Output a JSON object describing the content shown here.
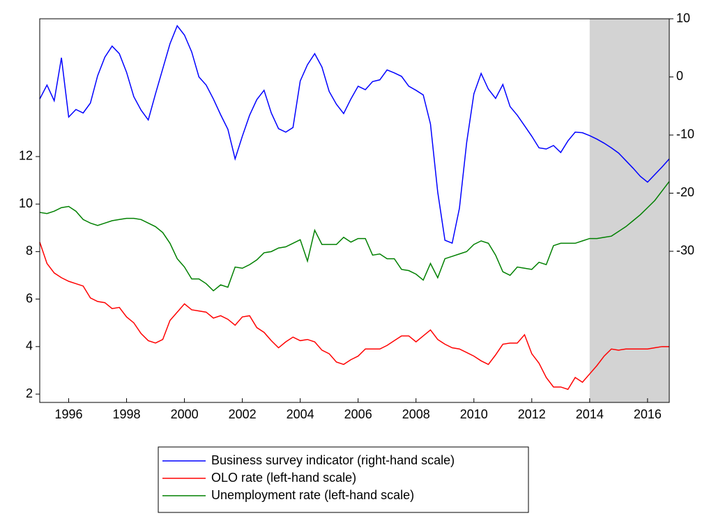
{
  "chart_data": {
    "type": "line",
    "x": [
      1995,
      1995.25,
      1995.5,
      1995.75,
      1996,
      1996.25,
      1996.5,
      1996.75,
      1997,
      1997.25,
      1997.5,
      1997.75,
      1998,
      1998.25,
      1998.5,
      1998.75,
      1999,
      1999.25,
      1999.5,
      1999.75,
      2000,
      2000.25,
      2000.5,
      2000.75,
      2001,
      2001.25,
      2001.5,
      2001.75,
      2002,
      2002.25,
      2002.5,
      2002.75,
      2003,
      2003.25,
      2003.5,
      2003.75,
      2004,
      2004.25,
      2004.5,
      2004.75,
      2005,
      2005.25,
      2005.5,
      2005.75,
      2006,
      2006.25,
      2006.5,
      2006.75,
      2007,
      2007.25,
      2007.5,
      2007.75,
      2008,
      2008.25,
      2008.5,
      2008.75,
      2009,
      2009.25,
      2009.5,
      2009.75,
      2010,
      2010.25,
      2010.5,
      2010.75,
      2011,
      2011.25,
      2011.5,
      2011.75,
      2012,
      2012.25,
      2012.5,
      2012.75,
      2013,
      2013.25,
      2013.5,
      2013.75,
      2014,
      2014.25,
      2014.5,
      2014.75,
      2015,
      2015.25,
      2015.5,
      2015.75,
      2016,
      2016.25,
      2016.5,
      2016.75
    ],
    "series": [
      {
        "name": "Business survey indicator (right-hand scale)",
        "color": "#0000ff",
        "axis": "y2",
        "values": [
          -3.8,
          -1.4,
          -4.1,
          3.3,
          -6.9,
          -5.6,
          -6.2,
          -4.5,
          0.2,
          3.4,
          5.3,
          4.0,
          0.8,
          -3.4,
          -5.7,
          -7.4,
          -2.9,
          1.4,
          5.7,
          8.8,
          7.2,
          4.3,
          0,
          -1.4,
          -3.8,
          -6.5,
          -9.0,
          -14.1,
          -10.2,
          -6.6,
          -3.9,
          -2.3,
          -6.2,
          -8.9,
          -9.5,
          -8.7,
          -0.7,
          2.1,
          4.0,
          1.7,
          -2.5,
          -4.7,
          -6.3,
          -3.8,
          -1.6,
          -2.2,
          -0.8,
          -0.5,
          1.2,
          0.7,
          0.1,
          -1.6,
          -2.3,
          -3.1,
          -8.1,
          -19.8,
          -28.1,
          -28.6,
          -22.6,
          -11.3,
          -2.9,
          0.6,
          -2.1,
          -3.7,
          -1.3,
          -5.1,
          -6.6,
          -8.4,
          -10.2,
          -12.2,
          -12.4,
          -11.8,
          -13.0,
          -11.0,
          -9.5,
          -9.6,
          -10.1,
          -10.7,
          -11.4,
          -12.2,
          -13.1,
          -14.4,
          -15.7,
          -17.1,
          -18.1,
          -16.8,
          -15.5,
          -14.1
        ]
      },
      {
        "name": "OLO rate (left-hand scale)",
        "color": "#ff0000",
        "values": [
          8.4,
          7.5,
          7.1,
          6.9,
          6.75,
          6.65,
          6.55,
          6.05,
          5.9,
          5.85,
          5.6,
          5.65,
          5.25,
          5.0,
          4.55,
          4.25,
          4.15,
          4.3,
          5.1,
          5.45,
          5.8,
          5.55,
          5.5,
          5.45,
          5.2,
          5.3,
          5.15,
          4.9,
          5.25,
          5.3,
          4.8,
          4.6,
          4.25,
          3.95,
          4.2,
          4.4,
          4.25,
          4.3,
          4.2,
          3.85,
          3.7,
          3.35,
          3.25,
          3.45,
          3.6,
          3.9,
          3.9,
          3.9,
          4.05,
          4.25,
          4.45,
          4.45,
          4.2,
          4.45,
          4.7,
          4.3,
          4.1,
          3.95,
          3.9,
          3.75,
          3.6,
          3.4,
          3.25,
          3.65,
          4.1,
          4.15,
          4.15,
          4.5,
          3.7,
          3.3,
          2.7,
          2.3,
          2.3,
          2.2,
          2.7,
          2.5,
          2.85,
          3.2,
          3.6,
          3.9,
          3.85,
          3.9,
          3.9,
          3.9,
          3.9,
          3.95,
          4.0,
          4.0
        ]
      },
      {
        "name": "Unemployment rate (left-hand scale)",
        "color": "#008000",
        "values": [
          9.65,
          9.6,
          9.7,
          9.85,
          9.9,
          9.7,
          9.35,
          9.2,
          9.1,
          9.2,
          9.3,
          9.35,
          9.4,
          9.4,
          9.35,
          9.2,
          9.05,
          8.8,
          8.35,
          7.7,
          7.35,
          6.85,
          6.85,
          6.65,
          6.35,
          6.6,
          6.5,
          7.35,
          7.3,
          7.45,
          7.65,
          7.95,
          8.0,
          8.15,
          8.2,
          8.35,
          8.5,
          7.6,
          8.9,
          8.3,
          8.3,
          8.3,
          8.6,
          8.4,
          8.55,
          8.55,
          7.85,
          7.9,
          7.7,
          7.7,
          7.25,
          7.2,
          7.05,
          6.8,
          7.5,
          6.9,
          7.7,
          7.8,
          7.9,
          8.0,
          8.3,
          8.45,
          8.35,
          7.85,
          7.15,
          7.0,
          7.35,
          7.3,
          7.25,
          7.55,
          7.45,
          8.25,
          8.35,
          8.35,
          8.35,
          8.45,
          8.55,
          8.55,
          8.6,
          8.65,
          8.85,
          9.05,
          9.3,
          9.55,
          9.85,
          10.15,
          10.55,
          10.95
        ]
      }
    ],
    "xlim": [
      1995,
      2016.75
    ],
    "xticks": [
      1996,
      1998,
      2000,
      2002,
      2004,
      2006,
      2008,
      2010,
      2012,
      2014,
      2016
    ],
    "ylim": [
      1.65,
      17.8
    ],
    "yticks": [
      2,
      4,
      6,
      8,
      10,
      12
    ],
    "y2lim": [
      -56,
      10
    ],
    "y2ticks": [
      -30,
      -20,
      -10,
      0,
      10
    ],
    "shade": [
      2014,
      2016.75
    ],
    "shade_color": "#d3d3d3"
  }
}
